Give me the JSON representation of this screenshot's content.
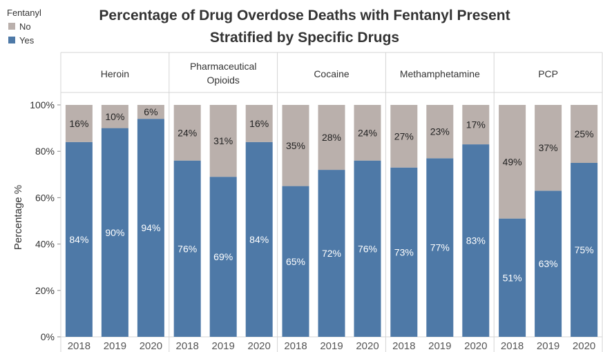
{
  "chart_data": {
    "type": "bar",
    "stacked": true,
    "title": "Percentage of Drug Overdose Deaths with Fentanyl Present",
    "subtitle": "Stratified by Specific Drugs",
    "ylabel": "Percentage %",
    "ylim": [
      0,
      100
    ],
    "yticks": [
      "0%",
      "20%",
      "40%",
      "60%",
      "80%",
      "100%"
    ],
    "grid": false,
    "legend": {
      "title": "Fentanyl",
      "placement": "top-left",
      "entries": [
        {
          "label": "No",
          "color": "#bab0ac"
        },
        {
          "label": "Yes",
          "color": "#4e79a7"
        }
      ]
    },
    "groups": [
      {
        "name": "Heroin",
        "years": [
          "2018",
          "2019",
          "2020"
        ],
        "yes": [
          84,
          90,
          94
        ],
        "no": [
          16,
          10,
          6
        ],
        "yes_labels": [
          "84%",
          "90%",
          "94%"
        ],
        "no_labels": [
          "16%",
          "10%",
          "6%"
        ]
      },
      {
        "name": "Pharmaceutical Opioids",
        "years": [
          "2018",
          "2019",
          "2020"
        ],
        "yes": [
          76,
          69,
          84
        ],
        "no": [
          24,
          31,
          16
        ],
        "yes_labels": [
          "76%",
          "69%",
          "84%"
        ],
        "no_labels": [
          "24%",
          "31%",
          "16%"
        ]
      },
      {
        "name": "Cocaine",
        "years": [
          "2018",
          "2019",
          "2020"
        ],
        "yes": [
          65,
          72,
          76
        ],
        "no": [
          35,
          28,
          24
        ],
        "yes_labels": [
          "65%",
          "72%",
          "76%"
        ],
        "no_labels": [
          "35%",
          "28%",
          "24%"
        ]
      },
      {
        "name": "Methamphetamine",
        "years": [
          "2018",
          "2019",
          "2020"
        ],
        "yes": [
          73,
          77,
          83
        ],
        "no": [
          27,
          23,
          17
        ],
        "yes_labels": [
          "73%",
          "77%",
          "83%"
        ],
        "no_labels": [
          "27%",
          "23%",
          "17%"
        ]
      },
      {
        "name": "PCP",
        "years": [
          "2018",
          "2019",
          "2020"
        ],
        "yes": [
          51,
          63,
          75
        ],
        "no": [
          49,
          37,
          25
        ],
        "yes_labels": [
          "51%",
          "63%",
          "75%"
        ],
        "no_labels": [
          "49%",
          "37%",
          "25%"
        ]
      }
    ]
  }
}
